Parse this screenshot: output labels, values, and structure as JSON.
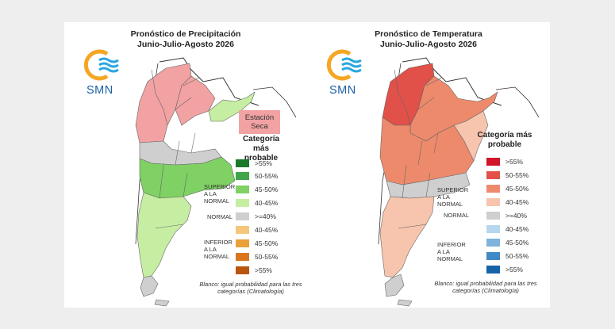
{
  "panels": {
    "precip": {
      "title": "Pronóstico de Precipitación",
      "subtitle": "Junio-Julio-Agosto 2026",
      "logo_text": "SMN",
      "dry_station_label": "Estación Seca",
      "legend_title": "Categoría más probable",
      "legend_items": [
        {
          "label": ">55%",
          "color": "#1a7a2a"
        },
        {
          "label": "50-55%",
          "color": "#3fa548"
        },
        {
          "label": "45-50%",
          "color": "#7fd164"
        },
        {
          "label": "40-45%",
          "color": "#c6eea2"
        },
        {
          "label": ">=40%",
          "color": "#cfcfcf"
        },
        {
          "label": "40-45%",
          "color": "#f5c77a"
        },
        {
          "label": "45-50%",
          "color": "#e9a13a"
        },
        {
          "label": "50-55%",
          "color": "#d9761d"
        },
        {
          "label": ">55%",
          "color": "#b9560e"
        }
      ],
      "category_labels": {
        "superior": "SUPERIOR A LA NORMAL",
        "normal": "NORMAL",
        "inferior": "INFERIOR A LA NORMAL"
      },
      "note": "Blanco: igual probabilidad para las tres categorías (Climatología)"
    },
    "temp": {
      "title": "Pronóstico de Temperatura",
      "subtitle": "Junio-Julio-Agosto 2026",
      "logo_text": "SMN",
      "legend_title": "Categoría más probable",
      "legend_items": [
        {
          "label": ">55%",
          "color": "#d0142a"
        },
        {
          "label": "50-55%",
          "color": "#e2504a"
        },
        {
          "label": "45-50%",
          "color": "#ee8a6c"
        },
        {
          "label": "40-45%",
          "color": "#f7c4ad"
        },
        {
          "label": ">=40%",
          "color": "#cfcfcf"
        },
        {
          "label": "40-45%",
          "color": "#b6d7ee"
        },
        {
          "label": "45-50%",
          "color": "#7fb3dc"
        },
        {
          "label": "50-55%",
          "color": "#3f8ac6"
        },
        {
          "label": ">55%",
          "color": "#1763a8"
        }
      ],
      "category_labels": {
        "superior": "SUPERIOR A LA NORMAL",
        "normal": "NORMAL",
        "inferior": "INFERIOR A LA NORMAL"
      },
      "note": "Blanco: igual probabilidad para las tres categorías (Climatología)"
    }
  },
  "colors": {
    "logo_sun": "#f5a623",
    "logo_waves": "#2aa7df",
    "logo_text": "#1b5fa8",
    "border": "#333333"
  }
}
